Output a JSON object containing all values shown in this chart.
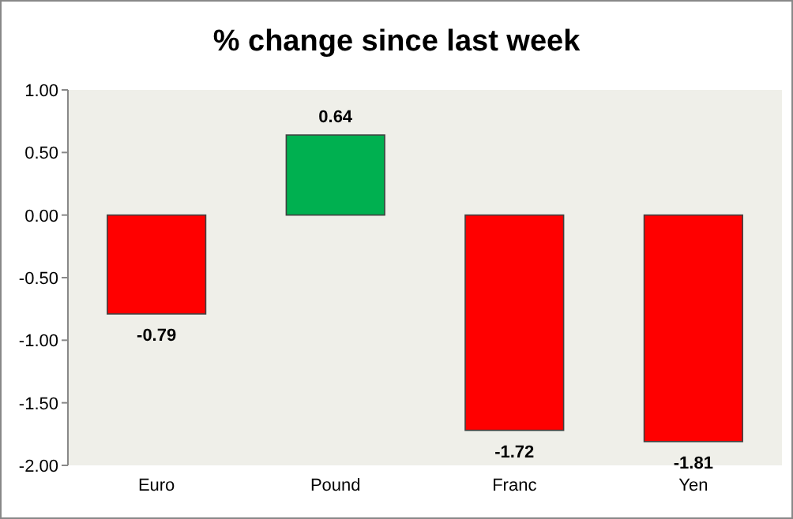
{
  "chart_data": {
    "type": "bar",
    "title": "% change since last week",
    "categories": [
      "Euro",
      "Pound",
      "Franc",
      "Yen"
    ],
    "values": [
      -0.79,
      0.64,
      -1.72,
      -1.81
    ],
    "colors": [
      "#ff0000",
      "#00b050",
      "#ff0000",
      "#ff0000"
    ],
    "ylim": [
      -2,
      1
    ],
    "yticks": [
      {
        "value": -2,
        "label": "-2.00"
      },
      {
        "value": -1.5,
        "label": "-1.50"
      },
      {
        "value": -1,
        "label": "-1.00"
      },
      {
        "value": -0.5,
        "label": "-0.50"
      },
      {
        "value": 0,
        "label": "0.00"
      },
      {
        "value": 0.5,
        "label": "0.50"
      },
      {
        "value": 1,
        "label": "1.00"
      }
    ],
    "data_labels": true,
    "grid": false
  }
}
